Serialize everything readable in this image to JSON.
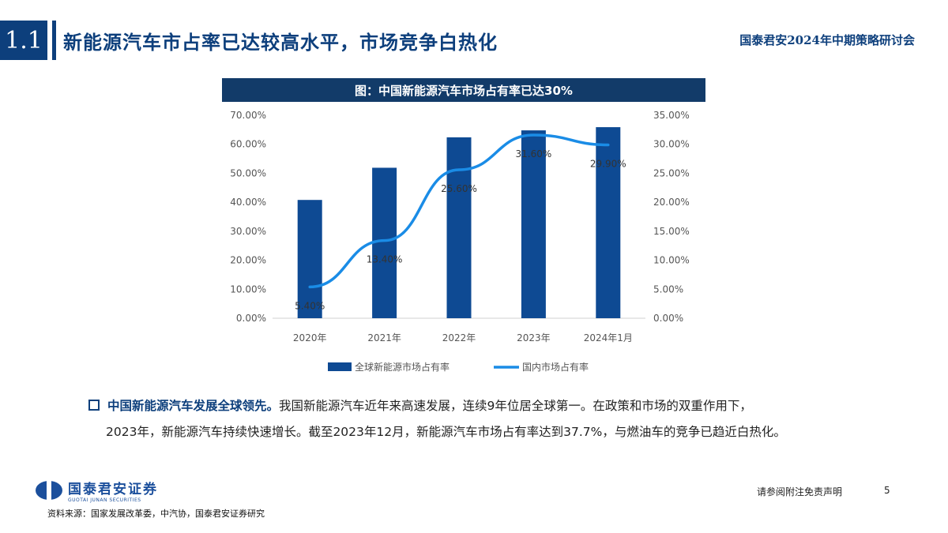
{
  "header": {
    "section_number": "1.1",
    "title": "新能源汽车市占率已达较高水平，市场竞争白热化",
    "conference": "国泰君安2024年中期策略研讨会"
  },
  "figure": {
    "title": "图：中国新能源汽车市场占有率已达30%"
  },
  "chart_data": {
    "type": "bar",
    "categories": [
      "2020年",
      "2021年",
      "2022年",
      "2023年",
      "2024年1月"
    ],
    "series": [
      {
        "name": "全球新能源市场占有率",
        "type": "bar",
        "axis": "left",
        "color": "#0e4a93",
        "values": [
          40.8,
          51.9,
          62.4,
          64.8,
          65.9
        ]
      },
      {
        "name": "国内市场占有率",
        "type": "line",
        "axis": "right",
        "color": "#1a8ce6",
        "values": [
          5.4,
          13.4,
          25.6,
          31.6,
          29.9
        ],
        "labels": [
          "5.40%",
          "13.40%",
          "25.60%",
          "31.60%",
          "29.90%"
        ]
      }
    ],
    "y_left": {
      "min": 0,
      "max": 70,
      "step": 10,
      "ticks": [
        "0.00%",
        "10.00%",
        "20.00%",
        "30.00%",
        "40.00%",
        "50.00%",
        "60.00%",
        "70.00%"
      ]
    },
    "y_right": {
      "min": 0,
      "max": 35,
      "step": 5,
      "ticks": [
        "0.00%",
        "5.00%",
        "10.00%",
        "15.00%",
        "20.00%",
        "25.00%",
        "30.00%",
        "35.00%"
      ]
    },
    "grid": false,
    "legend": "bottom"
  },
  "body": {
    "lead": "中国新能源汽车发展全球领先。",
    "text1": "我国新能源汽车近年来高速发展，连续9年位居全球第一。在政策和市场的双重作用下，",
    "text2": "2023年，新能源汽车持续快速增长。截至2023年12月，新能源汽车市场占有率达到37.7%，与燃油车的竞争已趋近白热化。"
  },
  "footer": {
    "logo_cn": "国泰君安证券",
    "logo_en": "GUOTAI JUNAN SECURITIES",
    "disclaimer": "请参阅附注免责声明",
    "page_number": "5",
    "source": "资料来源：国家发展改革委，中汽协，国泰君安证券研究"
  },
  "colors": {
    "brand": "#0d3f7c",
    "bar": "#0e4a93",
    "line": "#1a8ce6"
  }
}
